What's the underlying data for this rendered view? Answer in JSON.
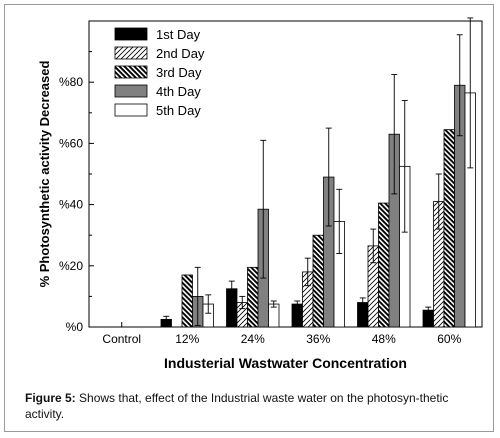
{
  "caption": {
    "label": "Figure 5:",
    "text": "Shows that, effect of the Industrial waste water on the photosyn-thetic activity."
  },
  "chart_data": {
    "type": "bar",
    "xlabel": "Industerial Wastwater Concentration",
    "ylabel": "% Photosynthetic activity Decreased",
    "ylim": [
      0,
      100
    ],
    "yticks": [
      0,
      20,
      40,
      60,
      80
    ],
    "ytick_labels": [
      "%0",
      "%20",
      "%40",
      "%60",
      "%80"
    ],
    "categories": [
      "Control",
      "12%",
      "24%",
      "36%",
      "48%",
      "60%"
    ],
    "legend_position": "top-left",
    "grid": false,
    "series": [
      {
        "name": "1st Day",
        "pattern": "solid-black",
        "values": [
          0,
          2.5,
          12.5,
          7.5,
          8,
          5.5
        ],
        "errors": [
          0,
          1,
          2.5,
          1,
          1.5,
          1
        ]
      },
      {
        "name": "2nd Day",
        "pattern": "light-hatch",
        "values": [
          0,
          0,
          8,
          18,
          26.5,
          41
        ],
        "errors": [
          0,
          0,
          2,
          4.5,
          5.5,
          9
        ]
      },
      {
        "name": "3rd Day",
        "pattern": "dense-hatch",
        "values": [
          0,
          17,
          19.5,
          30,
          40.5,
          64.5
        ],
        "errors": [
          0,
          0,
          0,
          0,
          0,
          0
        ]
      },
      {
        "name": "4th Day",
        "pattern": "solid-gray",
        "values": [
          0,
          10,
          38.5,
          49,
          63,
          79
        ],
        "errors": [
          0,
          9.5,
          22.5,
          16,
          19.5,
          16.5
        ]
      },
      {
        "name": "5th Day",
        "pattern": "white",
        "values": [
          0,
          7.5,
          7.5,
          34.5,
          52.5,
          76.5
        ],
        "errors": [
          0,
          3,
          1,
          10.5,
          21.5,
          24.5
        ]
      }
    ]
  },
  "colors": {
    "solid_black": "#000000",
    "solid_gray": "#808080",
    "hatch": "#000000",
    "axis": "#000000"
  }
}
